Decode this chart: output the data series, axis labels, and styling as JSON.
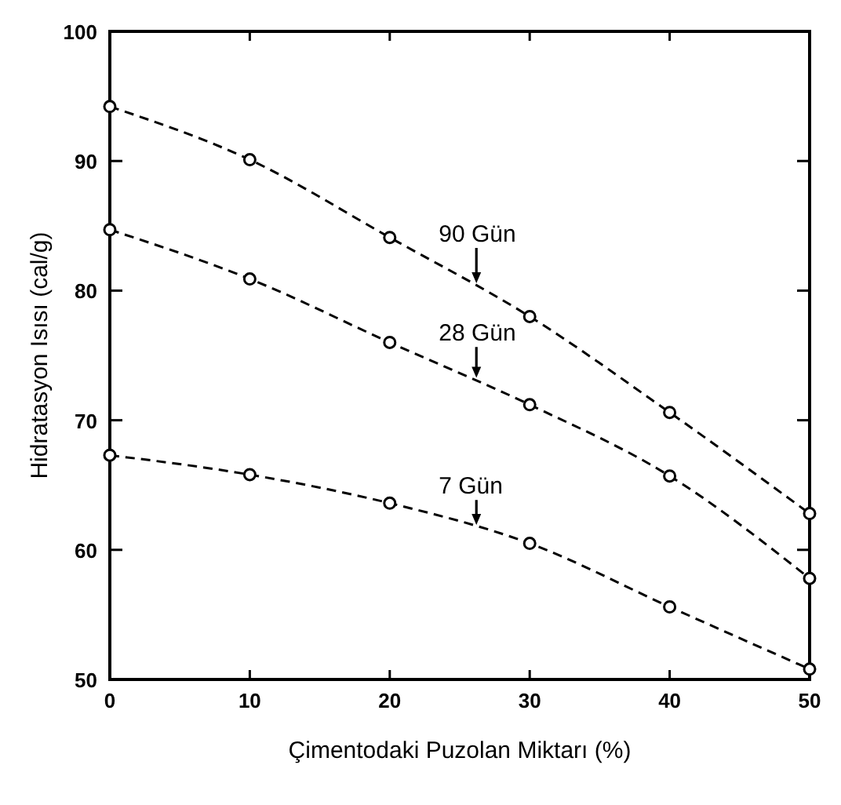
{
  "chart_data": {
    "type": "line",
    "xlabel": "Çimentodaki Puzolan Miktarı (%)",
    "ylabel": "Hidratasyon Isısı (cal/g)",
    "x": [
      0,
      10,
      20,
      30,
      40,
      50
    ],
    "xlim": [
      0,
      50
    ],
    "xticks": [
      0,
      10,
      20,
      30,
      40,
      50
    ],
    "ylim": [
      50,
      100
    ],
    "yticks": [
      50,
      60,
      70,
      80,
      90,
      100
    ],
    "marker": "circle",
    "line_style": "dashed",
    "legend": false,
    "grid": false,
    "series": [
      {
        "name": "90 Gün",
        "color": "#000000",
        "values": [
          94.2,
          90.1,
          84.1,
          78.0,
          70.6,
          62.8
        ]
      },
      {
        "name": "28 Gün",
        "color": "#000000",
        "values": [
          84.7,
          80.9,
          76.0,
          71.2,
          65.7,
          57.8
        ]
      },
      {
        "name": "7 Gün",
        "color": "#000000",
        "values": [
          67.3,
          65.8,
          63.6,
          60.5,
          55.6,
          50.8
        ]
      }
    ]
  }
}
